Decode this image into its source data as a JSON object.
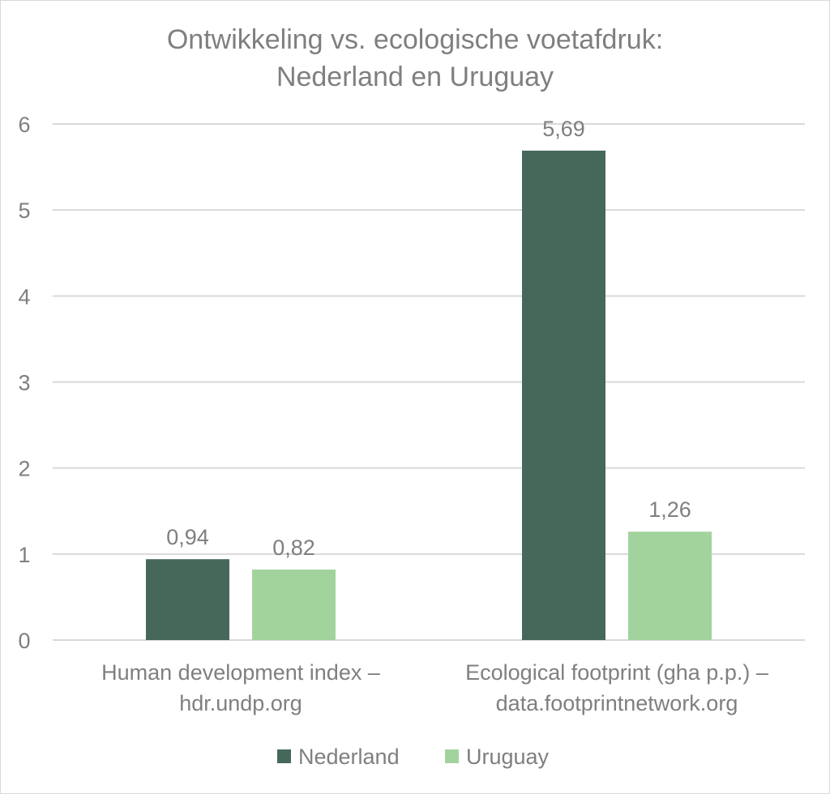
{
  "chart_data": {
    "type": "bar",
    "title": "Ontwikkeling vs. ecologische voetafdruk:",
    "subtitle": "Nederland en Uruguay",
    "categories": [
      [
        "Human development index –",
        "hdr.undp.org"
      ],
      [
        "Ecological footprint (gha p.p.) –",
        "data.footprintnetwork.org"
      ]
    ],
    "series": [
      {
        "name": "Nederland",
        "color": "#46685b",
        "values": [
          0.94,
          5.69
        ],
        "labels": [
          "0,94",
          "5,69"
        ]
      },
      {
        "name": "Uruguay",
        "color": "#a3d39c",
        "values": [
          0.82,
          1.26
        ],
        "labels": [
          "0,82",
          "1,26"
        ]
      }
    ],
    "ylim": [
      0,
      6
    ],
    "yticks": [
      "0",
      "1",
      "2",
      "3",
      "4",
      "5",
      "6"
    ],
    "grid": true,
    "legend": "bottom",
    "xlabel": "",
    "ylabel": ""
  }
}
